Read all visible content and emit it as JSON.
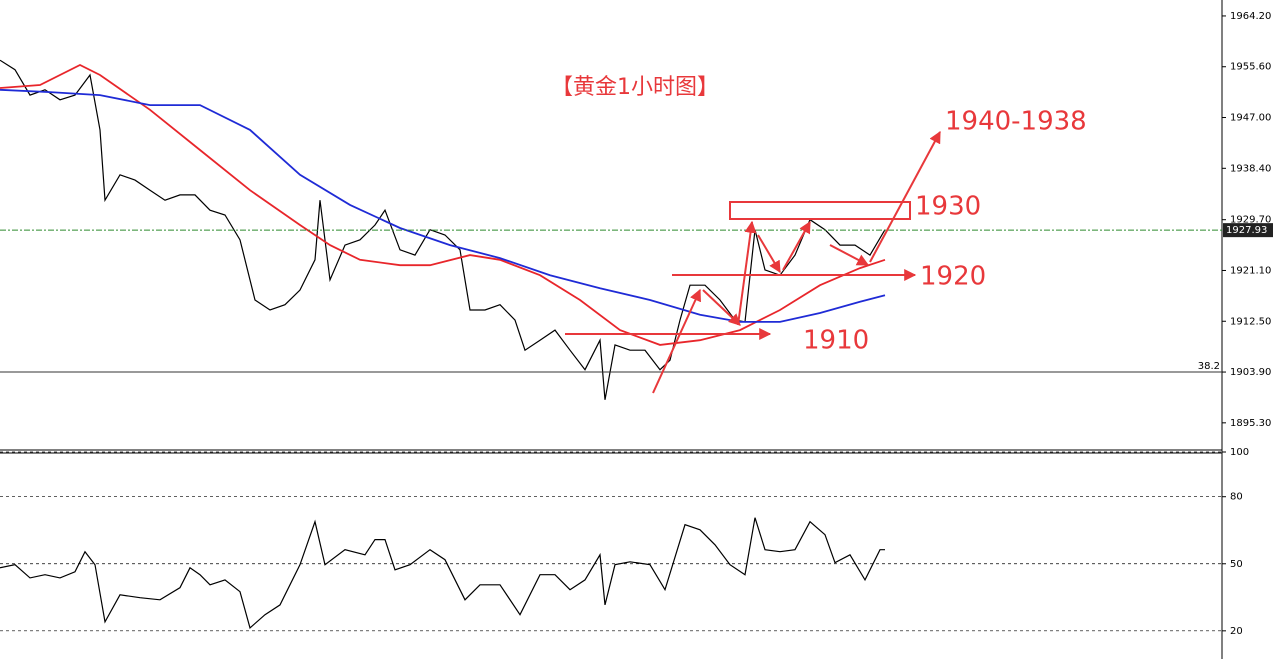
{
  "chart_data": [
    {
      "type": "line",
      "title": "【黄金1小时图】",
      "xlim": [
        0,
        244.4
      ],
      "ylim": [
        1890.7,
        1966.9
      ],
      "yticks": [
        {
          "value": 1964.2,
          "label": "1964.20"
        },
        {
          "value": 1955.6,
          "label": "1955.60"
        },
        {
          "value": 1947,
          "label": "1947.00"
        },
        {
          "value": 1938.4,
          "label": "1938.40"
        },
        {
          "value": 1929.7,
          "label": "1929.70"
        },
        {
          "value": 1921.1,
          "label": "1921.10"
        },
        {
          "value": 1912.5,
          "label": "1912.50"
        },
        {
          "value": 1903.9,
          "label": "1903.90"
        },
        {
          "value": 1895.3,
          "label": "1895.30"
        }
      ],
      "series": [
        {
          "color": "#000000",
          "x": [
            0,
            3,
            6,
            9,
            12,
            15,
            18,
            20,
            21,
            24,
            27,
            30,
            33,
            36,
            39,
            42,
            45,
            48,
            51,
            54,
            57,
            60,
            63,
            64,
            66,
            69,
            72,
            75,
            77,
            80,
            83,
            86,
            89,
            92,
            94,
            97,
            100,
            103,
            105,
            108,
            111,
            114,
            117,
            120,
            121,
            123,
            126,
            129,
            132,
            134,
            136,
            138,
            141,
            144,
            147,
            149,
            151,
            153,
            156,
            159,
            162,
            165,
            168,
            171,
            174,
            177
          ],
          "values": [
            1956.7,
            1955.1,
            1950.8,
            1951.7,
            1950.0,
            1950.8,
            1954.2,
            1944.9,
            1933.0,
            1937.3,
            1936.4,
            1934.7,
            1933.0,
            1933.9,
            1933.9,
            1931.3,
            1930.5,
            1926.3,
            1916.1,
            1914.4,
            1915.3,
            1917.8,
            1922.9,
            1933.0,
            1919.5,
            1925.4,
            1926.3,
            1928.8,
            1931.3,
            1924.6,
            1923.7,
            1928.0,
            1927.1,
            1924.6,
            1914.4,
            1914.4,
            1915.3,
            1912.7,
            1907.6,
            1909.3,
            1911.0,
            1907.6,
            1904.3,
            1909.3,
            1899.2,
            1908.5,
            1907.6,
            1907.6,
            1904.3,
            1905.9,
            1912.7,
            1918.6,
            1918.6,
            1916.1,
            1912.7,
            1912.4,
            1928.0,
            1921.2,
            1920.3,
            1923.7,
            1929.7,
            1928.0,
            1925.4,
            1925.4,
            1923.7,
            1928.0
          ]
        },
        {
          "color": "#e8262b",
          "x": [
            0,
            8,
            16,
            20,
            30,
            40,
            50,
            60,
            66,
            72,
            80,
            86,
            94,
            100,
            108,
            116,
            124,
            132,
            140,
            148,
            156,
            164,
            172,
            177
          ],
          "values": [
            1952.0,
            1952.5,
            1955.9,
            1954.2,
            1948.3,
            1941.5,
            1934.7,
            1928.8,
            1925.4,
            1922.9,
            1922.0,
            1922.0,
            1923.7,
            1922.9,
            1920.3,
            1916.1,
            1911.0,
            1908.5,
            1909.3,
            1911.0,
            1914.4,
            1918.6,
            1921.5,
            1922.9
          ]
        },
        {
          "color": "#1f2bd6",
          "x": [
            0,
            10,
            20,
            30,
            40,
            50,
            60,
            70,
            80,
            90,
            100,
            110,
            120,
            130,
            140,
            148,
            156,
            164,
            172,
            177
          ],
          "values": [
            1951.7,
            1951.3,
            1950.8,
            1949.1,
            1949.1,
            1944.9,
            1937.3,
            1932.2,
            1928.3,
            1925.4,
            1923.2,
            1920.3,
            1918.1,
            1916.1,
            1913.6,
            1912.4,
            1912.4,
            1913.9,
            1915.8,
            1916.9
          ]
        }
      ],
      "current_price": {
        "value": 1927.93,
        "label": "1927.93",
        "color": "#2e8b2e"
      },
      "fib_line": {
        "price": 1903.9,
        "text": "38.2"
      },
      "annotations": [
        "1940-1938",
        "1930",
        "1920",
        "1910"
      ]
    },
    {
      "type": "line",
      "xlim": [
        0,
        244.4
      ],
      "ylim": [
        7.4,
        100
      ],
      "yticks": [
        20,
        50,
        80,
        100
      ],
      "series": [
        {
          "color": "#000000",
          "x": [
            0,
            3,
            6,
            9,
            12,
            15,
            17,
            19,
            21,
            24,
            28,
            32,
            36,
            38,
            40,
            42,
            45,
            48,
            50,
            53,
            56,
            60,
            63,
            65,
            69,
            73,
            75,
            77,
            79,
            82,
            86,
            89,
            93,
            96,
            100,
            104,
            108,
            111,
            114,
            117,
            120,
            121,
            123,
            126,
            130,
            133,
            137,
            140,
            143,
            146,
            149,
            151,
            153,
            156,
            159,
            162,
            165,
            167,
            170,
            173,
            176,
            177
          ],
          "values": [
            48.2,
            49.6,
            43.7,
            45.1,
            43.7,
            46.4,
            55.4,
            49.6,
            24.0,
            36.1,
            34.8,
            33.9,
            39.3,
            48.2,
            45.1,
            40.6,
            42.8,
            37.5,
            21.3,
            27.2,
            31.6,
            49.6,
            68.8,
            49.6,
            56.3,
            54.0,
            60.8,
            60.8,
            47.3,
            49.6,
            56.3,
            51.8,
            33.9,
            40.6,
            40.6,
            27.2,
            45.1,
            45.1,
            38.4,
            42.8,
            54.0,
            31.6,
            49.6,
            50.9,
            49.6,
            38.4,
            67.5,
            65.2,
            58.5,
            49.6,
            45.1,
            70.6,
            56.3,
            55.4,
            56.3,
            68.8,
            63.0,
            50.5,
            54.0,
            42.8,
            56.3,
            56.3
          ]
        }
      ]
    }
  ]
}
